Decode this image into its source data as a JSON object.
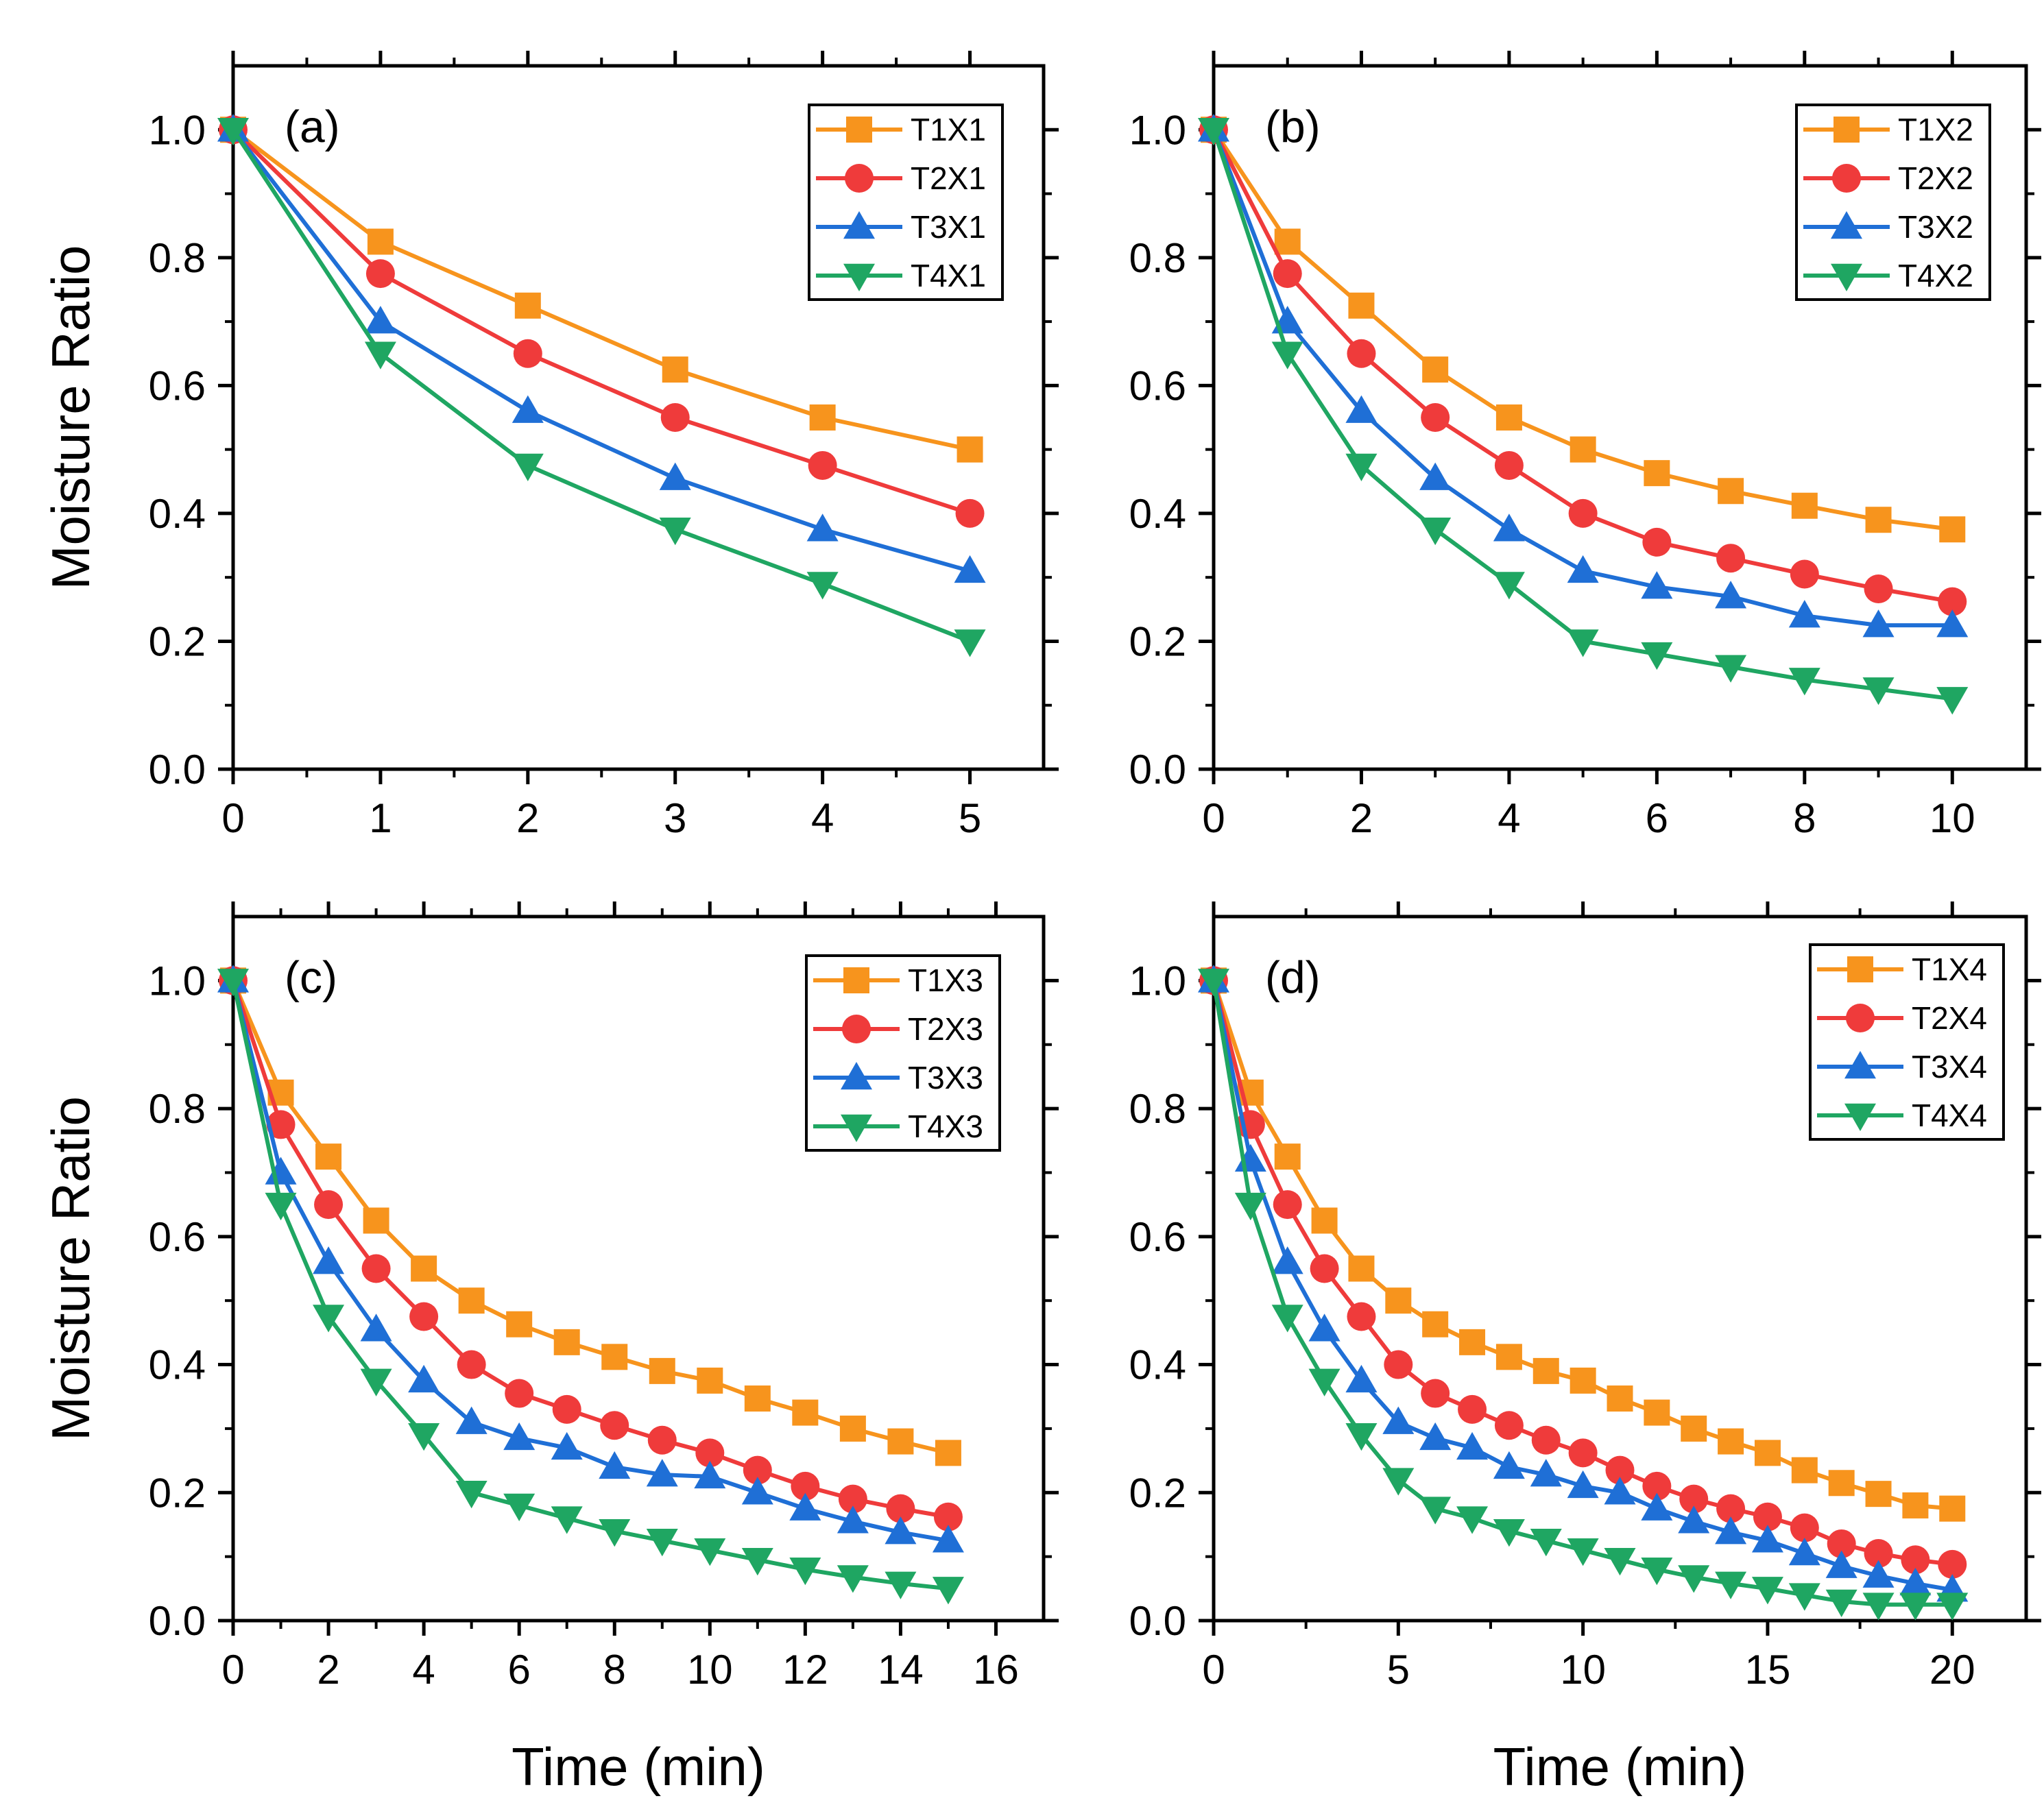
{
  "figure": {
    "x_axis_title": "Time (min)",
    "y_axis_title": "Moisture Ratio"
  },
  "colors": {
    "T1": "#f7941d",
    "T2": "#ef3b3b",
    "T3": "#1f6fd6",
    "T4": "#1fa662"
  },
  "chart_data": [
    {
      "type": "line",
      "panel_label": "(a)",
      "xlabel": "",
      "ylabel": "Moisture Ratio",
      "xlim": [
        0,
        5.5
      ],
      "ylim": [
        0,
        1.1
      ],
      "xticks": [
        0,
        1,
        2,
        3,
        4,
        5
      ],
      "yticks": [
        0.0,
        0.2,
        0.4,
        0.6,
        0.8,
        1.0
      ],
      "legend_position": "top-right",
      "x": [
        0,
        1,
        2,
        3,
        4,
        5
      ],
      "series": [
        {
          "name": "T1X1",
          "marker": "square",
          "values": [
            1.0,
            0.825,
            0.725,
            0.625,
            0.55,
            0.5
          ]
        },
        {
          "name": "T2X1",
          "marker": "circle",
          "values": [
            1.0,
            0.775,
            0.65,
            0.55,
            0.475,
            0.4
          ]
        },
        {
          "name": "T3X1",
          "marker": "triangle-up",
          "values": [
            1.0,
            0.7,
            0.56,
            0.455,
            0.375,
            0.31
          ]
        },
        {
          "name": "T4X1",
          "marker": "triangle-down",
          "values": [
            1.0,
            0.65,
            0.475,
            0.375,
            0.29,
            0.2
          ]
        }
      ]
    },
    {
      "type": "line",
      "panel_label": "(b)",
      "xlabel": "",
      "ylabel": "",
      "xlim": [
        0,
        11
      ],
      "ylim": [
        0,
        1.1
      ],
      "xticks": [
        0,
        2,
        4,
        6,
        8,
        10
      ],
      "yticks": [
        0.0,
        0.2,
        0.4,
        0.6,
        0.8,
        1.0
      ],
      "legend_position": "top-right",
      "x": [
        0,
        1,
        2,
        3,
        4,
        5,
        6,
        7,
        8,
        9,
        10
      ],
      "series": [
        {
          "name": "T1X2",
          "marker": "square",
          "values": [
            1.0,
            0.825,
            0.725,
            0.625,
            0.55,
            0.5,
            0.463,
            0.435,
            0.412,
            0.39,
            0.375
          ]
        },
        {
          "name": "T2X2",
          "marker": "circle",
          "values": [
            1.0,
            0.775,
            0.65,
            0.55,
            0.475,
            0.4,
            0.355,
            0.33,
            0.305,
            0.282,
            0.262
          ]
        },
        {
          "name": "T3X2",
          "marker": "triangle-up",
          "values": [
            1.0,
            0.7,
            0.56,
            0.455,
            0.375,
            0.31,
            0.285,
            0.27,
            0.24,
            0.225,
            0.225
          ]
        },
        {
          "name": "T4X2",
          "marker": "triangle-down",
          "values": [
            1.0,
            0.65,
            0.475,
            0.375,
            0.29,
            0.2,
            0.18,
            0.16,
            0.14,
            0.125,
            0.11
          ]
        }
      ]
    },
    {
      "type": "line",
      "panel_label": "(c)",
      "xlabel": "Time (min)",
      "ylabel": "Moisture Ratio",
      "xlim": [
        0,
        17
      ],
      "ylim": [
        0,
        1.1
      ],
      "xticks": [
        0,
        2,
        4,
        6,
        8,
        10,
        12,
        14,
        16
      ],
      "yticks": [
        0.0,
        0.2,
        0.4,
        0.6,
        0.8,
        1.0
      ],
      "legend_position": "top-right",
      "x": [
        0,
        1,
        2,
        3,
        4,
        5,
        6,
        7,
        8,
        9,
        10,
        11,
        12,
        13,
        14,
        15
      ],
      "series": [
        {
          "name": "T1X3",
          "marker": "square",
          "values": [
            1.0,
            0.825,
            0.725,
            0.625,
            0.55,
            0.5,
            0.463,
            0.435,
            0.412,
            0.39,
            0.375,
            0.347,
            0.325,
            0.3,
            0.28,
            0.262
          ]
        },
        {
          "name": "T2X3",
          "marker": "circle",
          "values": [
            1.0,
            0.775,
            0.65,
            0.55,
            0.475,
            0.4,
            0.355,
            0.33,
            0.305,
            0.282,
            0.262,
            0.235,
            0.21,
            0.19,
            0.175,
            0.162
          ]
        },
        {
          "name": "T3X3",
          "marker": "triangle-up",
          "values": [
            1.0,
            0.7,
            0.56,
            0.455,
            0.375,
            0.31,
            0.285,
            0.27,
            0.24,
            0.228,
            0.225,
            0.2,
            0.175,
            0.155,
            0.138,
            0.125
          ]
        },
        {
          "name": "T4X3",
          "marker": "triangle-down",
          "values": [
            1.0,
            0.65,
            0.475,
            0.375,
            0.29,
            0.2,
            0.18,
            0.16,
            0.14,
            0.125,
            0.11,
            0.095,
            0.08,
            0.068,
            0.058,
            0.05
          ]
        }
      ]
    },
    {
      "type": "line",
      "panel_label": "(d)",
      "xlabel": "Time (min)",
      "ylabel": "",
      "xlim": [
        0,
        22
      ],
      "ylim": [
        0,
        1.1
      ],
      "xticks": [
        0,
        5,
        10,
        15,
        20
      ],
      "yticks": [
        0.0,
        0.2,
        0.4,
        0.6,
        0.8,
        1.0
      ],
      "legend_position": "top-right",
      "x": [
        0,
        1,
        2,
        3,
        4,
        5,
        6,
        7,
        8,
        9,
        10,
        11,
        12,
        13,
        14,
        15,
        16,
        17,
        18,
        19,
        20
      ],
      "series": [
        {
          "name": "T1X4",
          "marker": "square",
          "values": [
            1.0,
            0.825,
            0.725,
            0.625,
            0.55,
            0.5,
            0.463,
            0.435,
            0.412,
            0.39,
            0.375,
            0.347,
            0.325,
            0.3,
            0.28,
            0.262,
            0.235,
            0.215,
            0.198,
            0.18,
            0.175
          ]
        },
        {
          "name": "T2X4",
          "marker": "circle",
          "values": [
            1.0,
            0.775,
            0.65,
            0.55,
            0.475,
            0.4,
            0.355,
            0.33,
            0.305,
            0.282,
            0.262,
            0.235,
            0.21,
            0.19,
            0.175,
            0.162,
            0.145,
            0.12,
            0.105,
            0.095,
            0.088
          ]
        },
        {
          "name": "T3X4",
          "marker": "triangle-up",
          "values": [
            1.0,
            0.72,
            0.56,
            0.455,
            0.375,
            0.31,
            0.285,
            0.27,
            0.24,
            0.228,
            0.21,
            0.2,
            0.175,
            0.155,
            0.138,
            0.125,
            0.105,
            0.085,
            0.07,
            0.058,
            0.048
          ]
        },
        {
          "name": "T4X4",
          "marker": "triangle-down",
          "values": [
            1.0,
            0.65,
            0.475,
            0.375,
            0.29,
            0.22,
            0.175,
            0.16,
            0.14,
            0.125,
            0.11,
            0.095,
            0.08,
            0.068,
            0.058,
            0.05,
            0.04,
            0.03,
            0.025,
            0.025,
            0.025
          ]
        }
      ]
    }
  ]
}
